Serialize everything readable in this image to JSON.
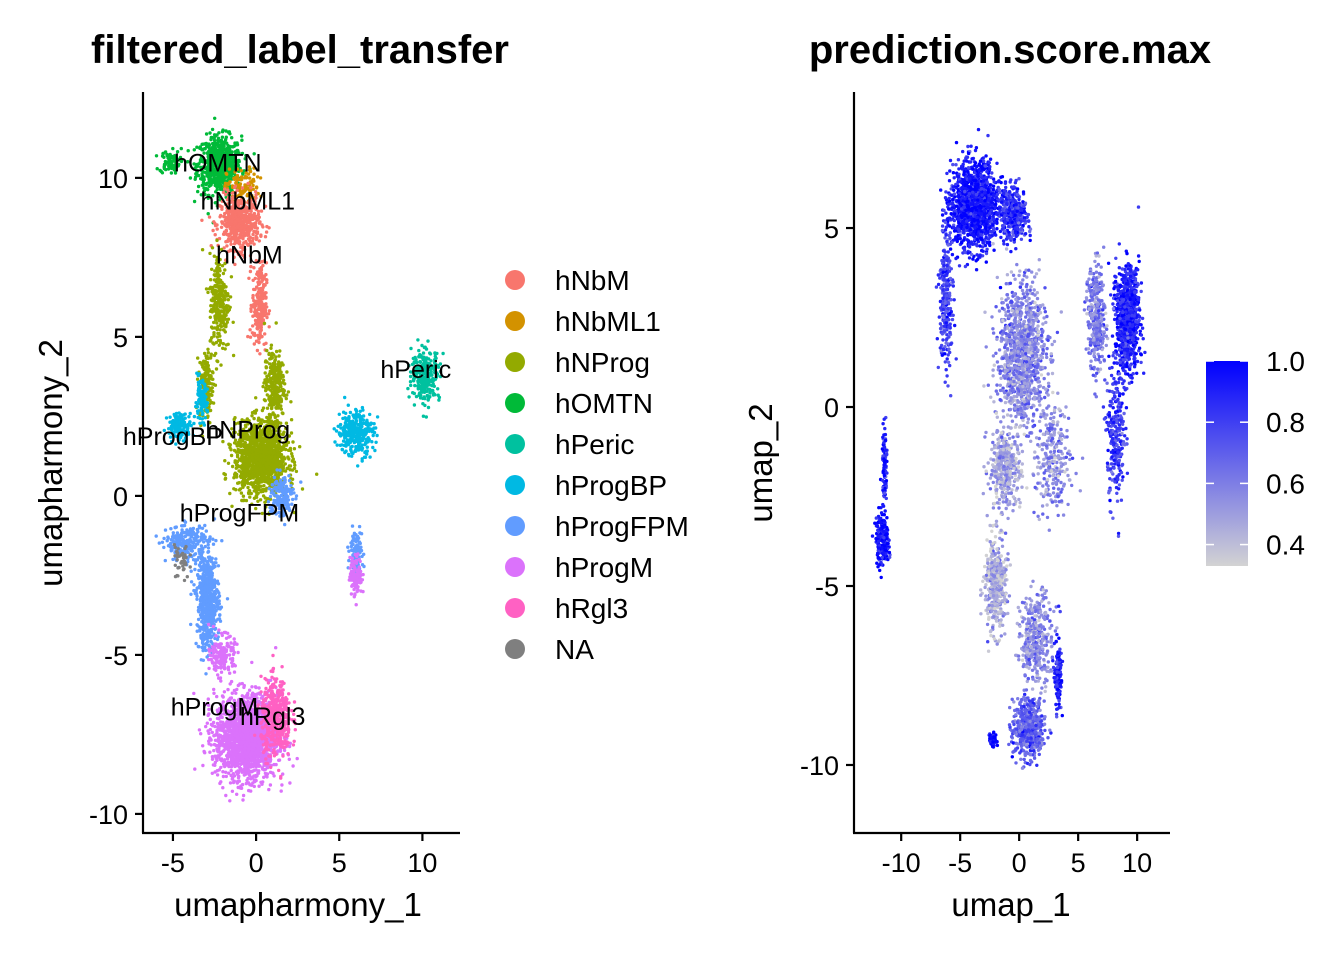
{
  "chart_data": [
    {
      "type": "scatter",
      "title": "filtered_label_transfer",
      "xlabel": "umapharmony_1",
      "ylabel": "umapharmony_2",
      "xlim": [
        -6.8,
        12.2
      ],
      "ylim": [
        -10.6,
        12.7
      ],
      "xticks": [
        -5,
        0,
        5,
        10
      ],
      "yticks": [
        -10,
        -5,
        0,
        5,
        10
      ],
      "legend_position": "right",
      "categories": [
        {
          "name": "hNbM",
          "color": "#F8766D"
        },
        {
          "name": "hNbML1",
          "color": "#D39200"
        },
        {
          "name": "hNProg",
          "color": "#93AA00"
        },
        {
          "name": "hOMTN",
          "color": "#00BA38"
        },
        {
          "name": "hPeric",
          "color": "#00C19F"
        },
        {
          "name": "hProgBP",
          "color": "#00B9E3"
        },
        {
          "name": "hProgFPM",
          "color": "#619CFF"
        },
        {
          "name": "hProgM",
          "color": "#DB72FB"
        },
        {
          "name": "hRgl3",
          "color": "#FF61C3"
        },
        {
          "name": "NA",
          "color": "#7F7F7F"
        }
      ],
      "cluster_labels": [
        {
          "text": "hOMTN",
          "x": -2.3,
          "y": 10.2
        },
        {
          "text": "hNbML1",
          "x": -0.5,
          "y": 9.0
        },
        {
          "text": "hNbM",
          "x": -0.4,
          "y": 7.3
        },
        {
          "text": "hPeric",
          "x": 9.6,
          "y": 3.7
        },
        {
          "text": "hNProg",
          "x": -0.5,
          "y": 1.8
        },
        {
          "text": "hProgBP",
          "x": -5.0,
          "y": 1.6
        },
        {
          "text": "hProgFPM",
          "x": -1.0,
          "y": -0.8
        },
        {
          "text": "hProgM",
          "x": -2.5,
          "y": -6.9
        },
        {
          "text": "hRgl3",
          "x": 1.0,
          "y": -7.2
        }
      ],
      "regions": [
        {
          "cat": "hOMTN",
          "n": 700,
          "cx": -2.2,
          "cy": 10.4,
          "sx": 1.1,
          "sy": 0.75
        },
        {
          "cat": "hOMTN",
          "n": 80,
          "cx": -5.2,
          "cy": 10.5,
          "sx": 0.5,
          "sy": 0.3
        },
        {
          "cat": "hNbML1",
          "n": 110,
          "cx": -0.8,
          "cy": 9.7,
          "sx": 0.8,
          "sy": 0.5
        },
        {
          "cat": "hNbM",
          "n": 520,
          "cx": -1.0,
          "cy": 8.6,
          "sx": 1.0,
          "sy": 0.7
        },
        {
          "cat": "hNbM",
          "n": 240,
          "cx": 0.2,
          "cy": 6.0,
          "sx": 0.35,
          "sy": 1.1
        },
        {
          "cat": "hNProg",
          "n": 260,
          "cx": -2.2,
          "cy": 6.1,
          "sx": 0.5,
          "sy": 1.3
        },
        {
          "cat": "hNProg",
          "n": 160,
          "cx": -3.0,
          "cy": 3.5,
          "sx": 0.35,
          "sy": 0.9
        },
        {
          "cat": "hNProg",
          "n": 260,
          "cx": 1.1,
          "cy": 3.5,
          "sx": 0.5,
          "sy": 0.9
        },
        {
          "cat": "hNProg",
          "n": 1300,
          "cx": 0.3,
          "cy": 1.2,
          "sx": 1.3,
          "sy": 0.95
        },
        {
          "cat": "hProgBP",
          "n": 140,
          "cx": -4.6,
          "cy": 2.2,
          "sx": 0.6,
          "sy": 0.35
        },
        {
          "cat": "hProgBP",
          "n": 320,
          "cx": 6.0,
          "cy": 2.0,
          "sx": 0.9,
          "sy": 0.6
        },
        {
          "cat": "hProgBP",
          "n": 110,
          "cx": -3.3,
          "cy": 3.0,
          "sx": 0.3,
          "sy": 0.5
        },
        {
          "cat": "hPeric",
          "n": 300,
          "cx": 10.2,
          "cy": 3.8,
          "sx": 0.7,
          "sy": 0.65
        },
        {
          "cat": "hProgFPM",
          "n": 240,
          "cx": -4.2,
          "cy": -1.5,
          "sx": 1.0,
          "sy": 0.45
        },
        {
          "cat": "hProgFPM",
          "n": 580,
          "cx": -2.9,
          "cy": -3.3,
          "sx": 0.55,
          "sy": 1.3
        },
        {
          "cat": "hProgFPM",
          "n": 120,
          "cx": 6.0,
          "cy": -1.8,
          "sx": 0.3,
          "sy": 0.6
        },
        {
          "cat": "hProgFPM",
          "n": 160,
          "cx": 1.5,
          "cy": 0.0,
          "sx": 0.6,
          "sy": 0.6
        },
        {
          "cat": "hProgM",
          "n": 170,
          "cx": -2.0,
          "cy": -5.0,
          "sx": 0.6,
          "sy": 0.5
        },
        {
          "cat": "hProgM",
          "n": 1800,
          "cx": -0.6,
          "cy": -7.6,
          "sx": 1.55,
          "sy": 1.1
        },
        {
          "cat": "hProgM",
          "n": 130,
          "cx": 6.0,
          "cy": -2.5,
          "sx": 0.3,
          "sy": 0.5
        },
        {
          "cat": "hRgl3",
          "n": 450,
          "cx": 1.2,
          "cy": -7.0,
          "sx": 0.75,
          "sy": 1.0
        },
        {
          "cat": "NA",
          "n": 40,
          "cx": -4.5,
          "cy": -2.0,
          "sx": 0.4,
          "sy": 0.6
        }
      ]
    },
    {
      "type": "scatter",
      "title": "prediction.score.max",
      "xlabel": "umap_1",
      "ylabel": "umap_2",
      "xlim": [
        -14.0,
        12.7
      ],
      "ylim": [
        -11.9,
        8.8
      ],
      "xticks": [
        -10,
        -5,
        0,
        5,
        10
      ],
      "yticks": [
        -10,
        -5,
        0,
        5
      ],
      "legend_position": "right",
      "colorbar": {
        "low_color": "#D3D3D3",
        "high_color": "#0000FF",
        "range": [
          0.33,
          1.0
        ],
        "ticks": [
          "1.0",
          "0.8",
          "0.6",
          "0.4"
        ]
      },
      "regions": [
        {
          "n": 1300,
          "cx": -3.8,
          "cy": 5.6,
          "sx": 1.6,
          "sy": 1.0,
          "score": 0.93
        },
        {
          "n": 380,
          "cx": -0.5,
          "cy": 5.4,
          "sx": 1.0,
          "sy": 0.6,
          "score": 0.85
        },
        {
          "n": 260,
          "cx": -6.2,
          "cy": 3.0,
          "sx": 0.45,
          "sy": 1.6,
          "score": 0.78
        },
        {
          "n": 900,
          "cx": 9.2,
          "cy": 2.5,
          "sx": 0.8,
          "sy": 1.2,
          "score": 0.9
        },
        {
          "n": 320,
          "cx": 6.5,
          "cy": 2.5,
          "sx": 0.7,
          "sy": 1.2,
          "score": 0.6
        },
        {
          "n": 1100,
          "cx": 0.2,
          "cy": 1.5,
          "sx": 1.7,
          "sy": 1.6,
          "score": 0.58
        },
        {
          "n": 380,
          "cx": -1.2,
          "cy": -1.7,
          "sx": 1.1,
          "sy": 0.9,
          "score": 0.48
        },
        {
          "n": 260,
          "cx": 2.8,
          "cy": -1.5,
          "sx": 1.2,
          "sy": 1.4,
          "score": 0.55
        },
        {
          "n": 260,
          "cx": 8.2,
          "cy": -0.8,
          "sx": 0.6,
          "sy": 1.5,
          "score": 0.82
        },
        {
          "n": 420,
          "cx": -2.0,
          "cy": -5.0,
          "sx": 0.75,
          "sy": 1.1,
          "score": 0.45
        },
        {
          "n": 340,
          "cx": 1.5,
          "cy": -6.5,
          "sx": 1.1,
          "sy": 1.1,
          "score": 0.56
        },
        {
          "n": 520,
          "cx": 0.8,
          "cy": -9.0,
          "sx": 1.1,
          "sy": 0.65,
          "score": 0.7
        },
        {
          "n": 130,
          "cx": 3.3,
          "cy": -7.5,
          "sx": 0.25,
          "sy": 0.9,
          "score": 0.88
        },
        {
          "n": 60,
          "cx": -2.2,
          "cy": -9.3,
          "sx": 0.25,
          "sy": 0.15,
          "score": 1.0
        },
        {
          "n": 200,
          "cx": -11.6,
          "cy": -3.7,
          "sx": 0.45,
          "sy": 0.6,
          "score": 0.95
        },
        {
          "n": 90,
          "cx": -11.4,
          "cy": -1.6,
          "sx": 0.2,
          "sy": 0.8,
          "score": 0.9
        }
      ]
    }
  ]
}
